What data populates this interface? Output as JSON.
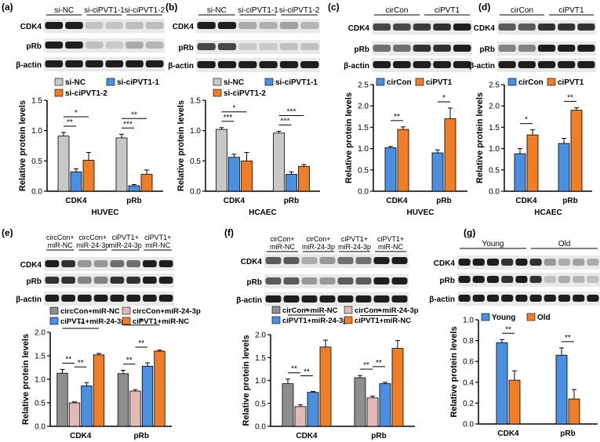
{
  "colors": {
    "gray": "#c8c8c8",
    "blue": "#4a90e2",
    "orange": "#f07e26",
    "darkgray": "#8f8f8f",
    "pink": "#e3b9b5",
    "blot_bg": "#e9e9e9",
    "band": "#1e1e1e"
  },
  "panels": [
    {
      "id": "a",
      "label": "(a)",
      "blot": {
        "groups": [
          "si-NC",
          "si-ciPVT1-1",
          "si-ciPVT1-2"
        ],
        "rows": [
          "CDK4",
          "pRb",
          "β-actin"
        ]
      },
      "chart_data": {
        "type": "bar",
        "title": "",
        "xlabel": "HUVEC",
        "ylabel": "Relative protein levels",
        "ylim": [
          0,
          1.5
        ],
        "yticks": [
          "0.0",
          "0.5",
          "1.0",
          "1.5"
        ],
        "categories": [
          "CDK4",
          "pRb"
        ],
        "series": [
          {
            "name": "si-NC",
            "color": "gray",
            "values": [
              0.91,
              0.88
            ],
            "errors": [
              0.06,
              0.06
            ]
          },
          {
            "name": "si-ciPVT1-1",
            "color": "blue",
            "values": [
              0.32,
              0.09
            ],
            "errors": [
              0.05,
              0.02
            ]
          },
          {
            "name": "si-ciPVT1-2",
            "color": "orange",
            "values": [
              0.51,
              0.28
            ],
            "errors": [
              0.13,
              0.07
            ]
          }
        ],
        "significance": [
          {
            "cat": 0,
            "from": 0,
            "to": 1,
            "label": "**"
          },
          {
            "cat": 0,
            "from": 0,
            "to": 2,
            "label": "*"
          },
          {
            "cat": 1,
            "from": 0,
            "to": 1,
            "label": "***"
          },
          {
            "cat": 1,
            "from": 0,
            "to": 2,
            "label": "**"
          }
        ]
      }
    },
    {
      "id": "b",
      "label": "(b)",
      "blot": {
        "groups": [
          "si-NC",
          "si-ciPVT1-1",
          "si-ciPVT1-2"
        ],
        "rows": [
          "CDK4",
          "pRb",
          "β-actin"
        ]
      },
      "chart_data": {
        "type": "bar",
        "title": "",
        "xlabel": "HCAEC",
        "ylabel": "Relative protein levels",
        "ylim": [
          0,
          1.5
        ],
        "yticks": [
          "0.0",
          "0.5",
          "1.0",
          "1.5"
        ],
        "categories": [
          "CDK4",
          "pRb"
        ],
        "series": [
          {
            "name": "si-NC",
            "color": "gray",
            "values": [
              1.02,
              0.96
            ],
            "errors": [
              0.03,
              0.03
            ]
          },
          {
            "name": "si-ciPVT1-1",
            "color": "blue",
            "values": [
              0.56,
              0.28
            ],
            "errors": [
              0.05,
              0.04
            ]
          },
          {
            "name": "si-ciPVT1-2",
            "color": "orange",
            "values": [
              0.5,
              0.41
            ],
            "errors": [
              0.14,
              0.03
            ]
          }
        ],
        "significance": [
          {
            "cat": 0,
            "from": 0,
            "to": 1,
            "label": "***"
          },
          {
            "cat": 0,
            "from": 0,
            "to": 2,
            "label": "*"
          },
          {
            "cat": 1,
            "from": 0,
            "to": 1,
            "label": "***"
          },
          {
            "cat": 1,
            "from": 0,
            "to": 2,
            "label": "***"
          }
        ]
      }
    },
    {
      "id": "c",
      "label": "(c)",
      "blot": {
        "groups": [
          "cirCon",
          "ciPVT1"
        ],
        "rows": [
          "CDK4",
          "pRb",
          "β-actin"
        ]
      },
      "chart_data": {
        "type": "bar",
        "title": "",
        "xlabel": "HUVEC",
        "ylabel": "Relative protein levels",
        "ylim": [
          0,
          2.5
        ],
        "yticks": [
          "0.0",
          "0.5",
          "1.0",
          "1.5",
          "2.0",
          "2.5"
        ],
        "categories": [
          "CDK4",
          "pRb"
        ],
        "series": [
          {
            "name": "cirCon",
            "color": "blue",
            "values": [
              1.02,
              0.9
            ],
            "errors": [
              0.03,
              0.07
            ]
          },
          {
            "name": "ciPVT1",
            "color": "orange",
            "values": [
              1.45,
              1.7
            ],
            "errors": [
              0.06,
              0.25
            ]
          }
        ],
        "significance": [
          {
            "cat": 0,
            "from": 0,
            "to": 1,
            "label": "**"
          },
          {
            "cat": 1,
            "from": 0,
            "to": 1,
            "label": "*"
          }
        ]
      }
    },
    {
      "id": "d",
      "label": "(d)",
      "blot": {
        "groups": [
          "cirCon",
          "ciPVT1"
        ],
        "rows": [
          "CDK4",
          "pRb",
          "β-actin"
        ]
      },
      "chart_data": {
        "type": "bar",
        "title": "",
        "xlabel": "HCAEC",
        "ylabel": "Relative protein levels",
        "ylim": [
          0,
          2.5
        ],
        "yticks": [
          "0.0",
          "0.5",
          "1.0",
          "1.5",
          "2.0",
          "2.5"
        ],
        "categories": [
          "CDK4",
          "pRb"
        ],
        "series": [
          {
            "name": "cirCon",
            "color": "blue",
            "values": [
              0.88,
              1.12
            ],
            "errors": [
              0.12,
              0.12
            ]
          },
          {
            "name": "ciPVT1",
            "color": "orange",
            "values": [
              1.32,
              1.9
            ],
            "errors": [
              0.12,
              0.06
            ]
          }
        ],
        "significance": [
          {
            "cat": 0,
            "from": 0,
            "to": 1,
            "label": "*"
          },
          {
            "cat": 1,
            "from": 0,
            "to": 1,
            "label": "**"
          }
        ]
      }
    },
    {
      "id": "e",
      "label": "(e)",
      "blot": {
        "groups": [
          "circCon+\nmiR-NC",
          "circCon+\nmiR-24-3p",
          "ciPVT1+\nmiR-24-3p",
          "ciPVT1+\nmiR-NC"
        ],
        "rows": [
          "CDK4",
          "pRb",
          "β-actin"
        ]
      },
      "chart_data": {
        "type": "bar",
        "title": "",
        "xlabel": "HUVEC",
        "ylabel": "Relative protein levels",
        "ylim": [
          0,
          2.0
        ],
        "yticks": [
          "0.0",
          "0.5",
          "1.0",
          "1.5",
          "2.0"
        ],
        "categories": [
          "CDK4",
          "pRb"
        ],
        "series": [
          {
            "name": "circCon+miR-NC",
            "color": "darkgray",
            "values": [
              1.13,
              1.12
            ],
            "errors": [
              0.08,
              0.07
            ]
          },
          {
            "name": "circCon+miR-24-3p",
            "color": "pink",
            "values": [
              0.5,
              0.75
            ],
            "errors": [
              0.02,
              0.03
            ]
          },
          {
            "name": "ciPVT1+miR-24-3p",
            "color": "blue",
            "values": [
              0.86,
              1.28
            ],
            "errors": [
              0.07,
              0.07
            ]
          },
          {
            "name": "ciPVT1+miR-NC",
            "color": "orange",
            "values": [
              1.52,
              1.6
            ],
            "errors": [
              0.03,
              0.02
            ]
          }
        ],
        "significance": [
          {
            "cat": 0,
            "from": 0,
            "to": 1,
            "label": "**"
          },
          {
            "cat": 0,
            "from": 1,
            "to": 2,
            "label": "**"
          },
          {
            "cat": 0,
            "from": 0,
            "to": 3,
            "label": "**"
          },
          {
            "cat": 1,
            "from": 0,
            "to": 1,
            "label": "**"
          },
          {
            "cat": 1,
            "from": 1,
            "to": 2,
            "label": "**"
          },
          {
            "cat": 1,
            "from": 0,
            "to": 3,
            "label": "*"
          }
        ]
      }
    },
    {
      "id": "f",
      "label": "(f)",
      "blot": {
        "groups": [
          "cirCon+\nmiR-NC",
          "cirCon+\nmiR-24-3p",
          "ciPVT1+\nmiR-24-3p",
          "ciPVT1+\nmiR-NC"
        ],
        "rows": [
          "CDK4",
          "pRb",
          "β-actin"
        ]
      },
      "chart_data": {
        "type": "bar",
        "title": "",
        "xlabel": "HCAEC",
        "ylabel": "Relative protein levels",
        "ylim": [
          0,
          2.0
        ],
        "yticks": [
          "0.0",
          "0.5",
          "1.0",
          "1.5",
          "2.0"
        ],
        "categories": [
          "CDK4",
          "pRb"
        ],
        "series": [
          {
            "name": "cirCon+miR-NC",
            "color": "darkgray",
            "values": [
              0.93,
              1.06
            ],
            "errors": [
              0.1,
              0.05
            ]
          },
          {
            "name": "cirCon+miR-24-3p",
            "color": "pink",
            "values": [
              0.43,
              0.62
            ],
            "errors": [
              0.04,
              0.04
            ]
          },
          {
            "name": "ciPVT1+miR-24-3p",
            "color": "blue",
            "values": [
              0.74,
              0.93
            ],
            "errors": [
              0.02,
              0.03
            ]
          },
          {
            "name": "ciPVT1+miR-NC",
            "color": "orange",
            "values": [
              1.73,
              1.7
            ],
            "errors": [
              0.15,
              0.17
            ]
          }
        ],
        "significance": [
          {
            "cat": 0,
            "from": 0,
            "to": 1,
            "label": "**"
          },
          {
            "cat": 0,
            "from": 1,
            "to": 2,
            "label": "**"
          },
          {
            "cat": 0,
            "from": 0,
            "to": 3,
            "label": "*"
          },
          {
            "cat": 1,
            "from": 0,
            "to": 1,
            "label": "**"
          },
          {
            "cat": 1,
            "from": 1,
            "to": 2,
            "label": "**"
          },
          {
            "cat": 1,
            "from": 0,
            "to": 3,
            "label": "*"
          }
        ]
      }
    },
    {
      "id": "g",
      "label": "(g)",
      "blot": {
        "groups": [
          "Young",
          "Old"
        ],
        "rows": [
          "CDK4",
          "pRb",
          "β-actin"
        ]
      },
      "chart_data": {
        "type": "bar",
        "title": "",
        "xlabel": "",
        "ylabel": "Relative protein levels",
        "ylim": [
          0,
          1.0
        ],
        "yticks": [
          "0.0",
          "0.2",
          "0.4",
          "0.6",
          "0.8",
          "1.0"
        ],
        "categories": [
          "CDK4",
          "pRb"
        ],
        "series": [
          {
            "name": "Young",
            "color": "blue",
            "values": [
              0.78,
              0.66
            ],
            "errors": [
              0.03,
              0.07
            ]
          },
          {
            "name": "Old",
            "color": "orange",
            "values": [
              0.42,
              0.24
            ],
            "errors": [
              0.09,
              0.09
            ]
          }
        ],
        "significance": [
          {
            "cat": 0,
            "from": 0,
            "to": 1,
            "label": "**"
          },
          {
            "cat": 1,
            "from": 0,
            "to": 1,
            "label": "**"
          }
        ]
      }
    }
  ]
}
